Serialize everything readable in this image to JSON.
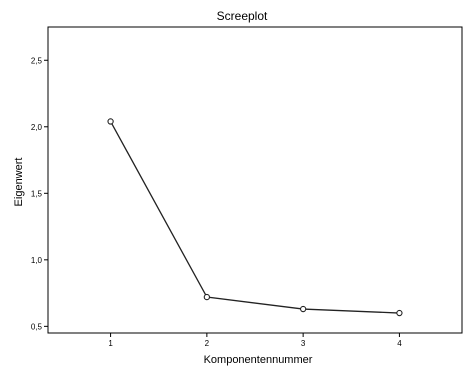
{
  "chart_data": {
    "type": "line",
    "title": "Screeplot",
    "xlabel": "Komponentennummer",
    "ylabel": "Eigenwert",
    "categories": [
      "1",
      "2",
      "3",
      "4"
    ],
    "values": [
      2.04,
      0.72,
      0.63,
      0.6
    ],
    "xlim": [
      0.35,
      4.65
    ],
    "ylim": [
      0.45,
      2.75
    ],
    "yticks": [
      {
        "value": 0.5,
        "label": "0,5"
      },
      {
        "value": 1.0,
        "label": "1,0"
      },
      {
        "value": 1.5,
        "label": "1,5"
      },
      {
        "value": 2.0,
        "label": "2,0"
      },
      {
        "value": 2.5,
        "label": "2,5"
      }
    ],
    "grid": false,
    "legend": "none",
    "colors": {
      "line": "#222222",
      "frame": "#000000",
      "background": "#ffffff"
    }
  }
}
